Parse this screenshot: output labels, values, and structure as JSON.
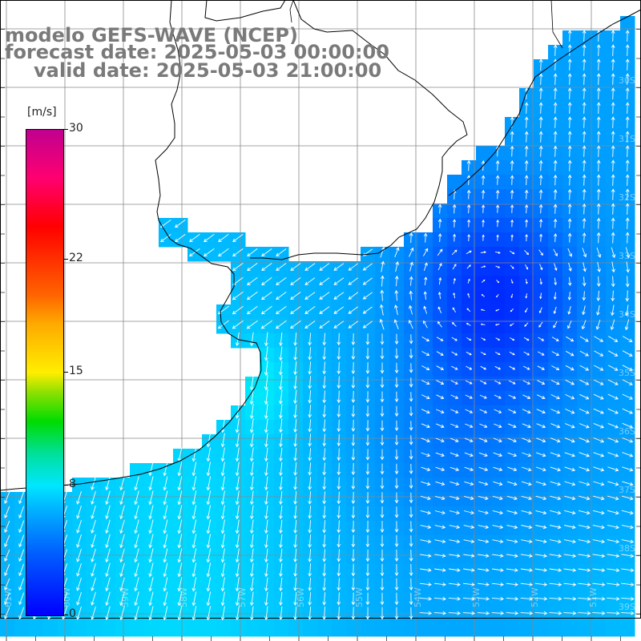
{
  "title": {
    "line1": "modelo GEFS-WAVE (NCEP)",
    "line2": "forecast date: 2025-05-03 00:00:00",
    "line3": "valid date: 2025-05-03 21:00:00"
  },
  "colorbar": {
    "unit": "[m/s]",
    "min": 0,
    "max": 30,
    "ticks": [
      {
        "label": "30",
        "value": 30
      },
      {
        "label": "22",
        "value": 22
      },
      {
        "label": "15",
        "value": 15
      },
      {
        "label": "8",
        "value": 8
      },
      {
        "label": "0",
        "value": 0
      }
    ],
    "colors": [
      "#0000ff",
      "#00b4ff",
      "#00e6ff",
      "#00dc00",
      "#ffee00",
      "#ff6400",
      "#ff0000",
      "#c00090"
    ]
  },
  "map": {
    "field": "wind speed",
    "land_color": "#ffffff",
    "grid_color": "#888888",
    "arrow_color": "#ffffff",
    "longitude_labels": [
      "61W",
      "60W",
      "59W",
      "58W",
      "57W",
      "56W",
      "55W",
      "54W",
      "53W",
      "52W",
      "51W"
    ],
    "latitude_labels": [
      "30S",
      "31S",
      "32S",
      "33S",
      "34S",
      "35S",
      "36S",
      "37S",
      "38S",
      "39S"
    ]
  }
}
